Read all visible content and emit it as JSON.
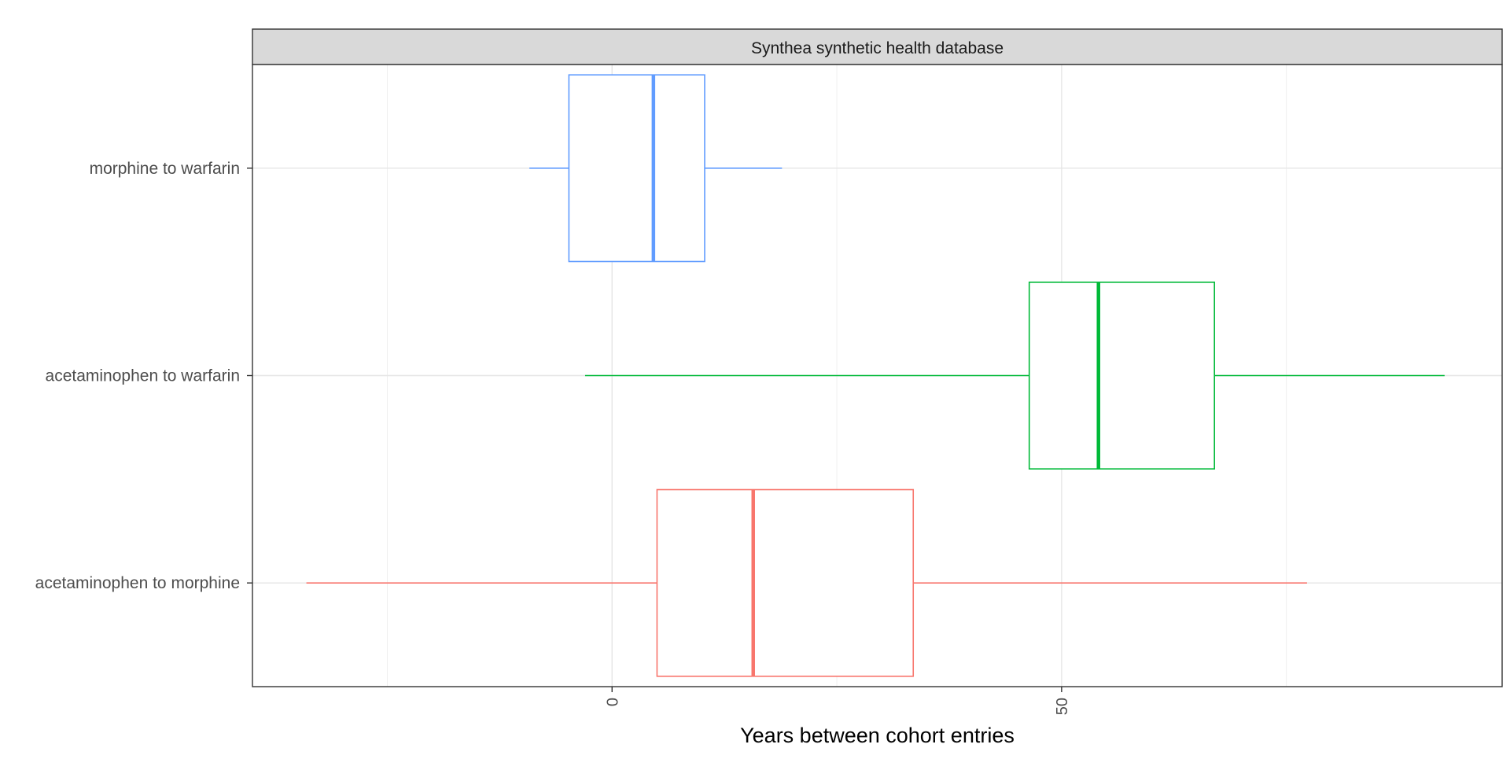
{
  "chart_data": {
    "type": "boxplot",
    "orientation": "horizontal",
    "facet_title": "Synthea synthetic health database",
    "xlabel": "Years between cohort entries",
    "ylabel": "",
    "xlim": [
      -40,
      99
    ],
    "x_ticks": [
      0,
      50
    ],
    "x_tick_labels": [
      "0",
      "50"
    ],
    "x_tick_label_rotation": -90,
    "grid": true,
    "legend": "none",
    "categories": [
      "acetaminophen to morphine",
      "acetaminophen to warfarin",
      "morphine to warfarin"
    ],
    "series": [
      {
        "category": "acetaminophen to morphine",
        "color": "#F8766D",
        "whisker_low": -34,
        "q1": 5,
        "median": 15.7,
        "q3": 33.5,
        "whisker_high": 77.3
      },
      {
        "category": "acetaminophen to warfarin",
        "color": "#00BA38",
        "whisker_low": -3,
        "q1": 46.4,
        "median": 54.1,
        "q3": 67,
        "whisker_high": 92.6
      },
      {
        "category": "morphine to warfarin",
        "color": "#619CFF",
        "whisker_low": -9.2,
        "q1": -4.8,
        "median": 4.6,
        "q3": 10.3,
        "whisker_high": 18.9
      }
    ]
  }
}
